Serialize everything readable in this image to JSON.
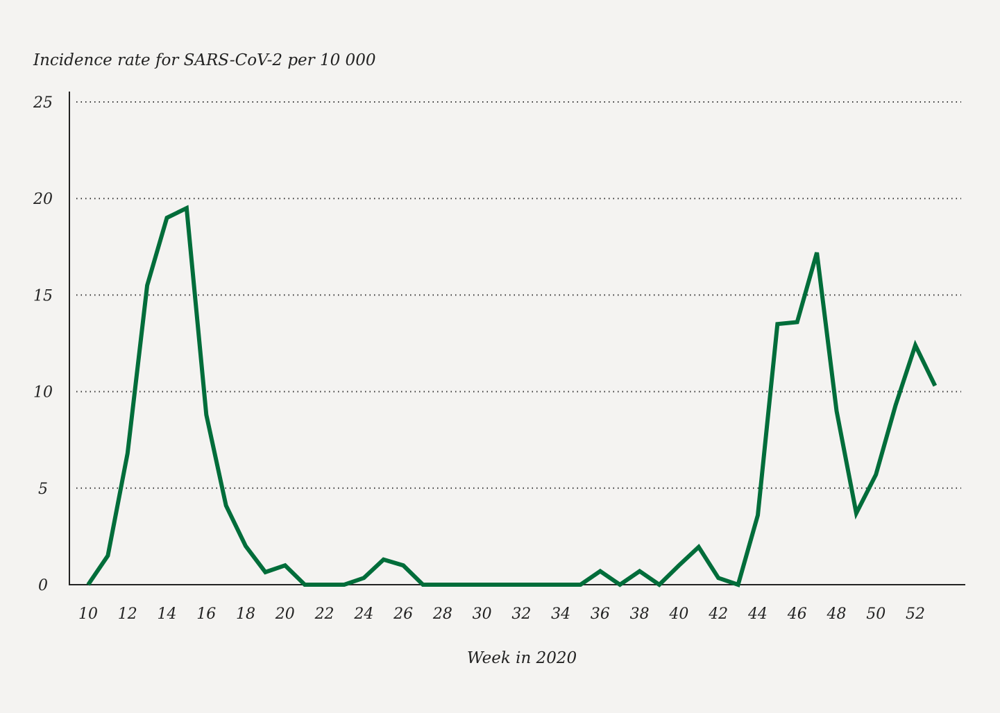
{
  "chart_data": {
    "type": "line",
    "title": "",
    "ylabel": "Incidence rate for SARS-CoV-2 per 10 000",
    "xlabel": "Week in 2020",
    "ylim": [
      0,
      25
    ],
    "xlim": [
      10,
      53
    ],
    "yticks": [
      0,
      5,
      10,
      15,
      20,
      25
    ],
    "xticks": [
      10,
      12,
      14,
      16,
      18,
      20,
      22,
      24,
      26,
      28,
      30,
      32,
      34,
      36,
      38,
      40,
      42,
      44,
      46,
      48,
      50,
      52
    ],
    "grid": "horizontal dotted",
    "line_color": "#006d3a",
    "x": [
      10,
      11,
      12,
      13,
      14,
      15,
      16,
      17,
      18,
      19,
      20,
      21,
      22,
      23,
      24,
      25,
      26,
      27,
      28,
      29,
      30,
      31,
      32,
      33,
      34,
      35,
      36,
      37,
      38,
      39,
      40,
      41,
      42,
      43,
      44,
      45,
      46,
      47,
      48,
      49,
      50,
      51,
      52,
      53
    ],
    "values": [
      0,
      1.5,
      6.8,
      15.5,
      19.0,
      19.5,
      8.8,
      4.1,
      2.0,
      0.65,
      1.0,
      0,
      0,
      0,
      0.35,
      1.3,
      1.0,
      0,
      0,
      0,
      0,
      0,
      0,
      0,
      0,
      0,
      0.7,
      0,
      0.7,
      0,
      1.0,
      1.95,
      0.35,
      0,
      3.6,
      13.5,
      13.6,
      17.2,
      9.0,
      3.7,
      5.7,
      9.3,
      12.4,
      10.3
    ]
  }
}
